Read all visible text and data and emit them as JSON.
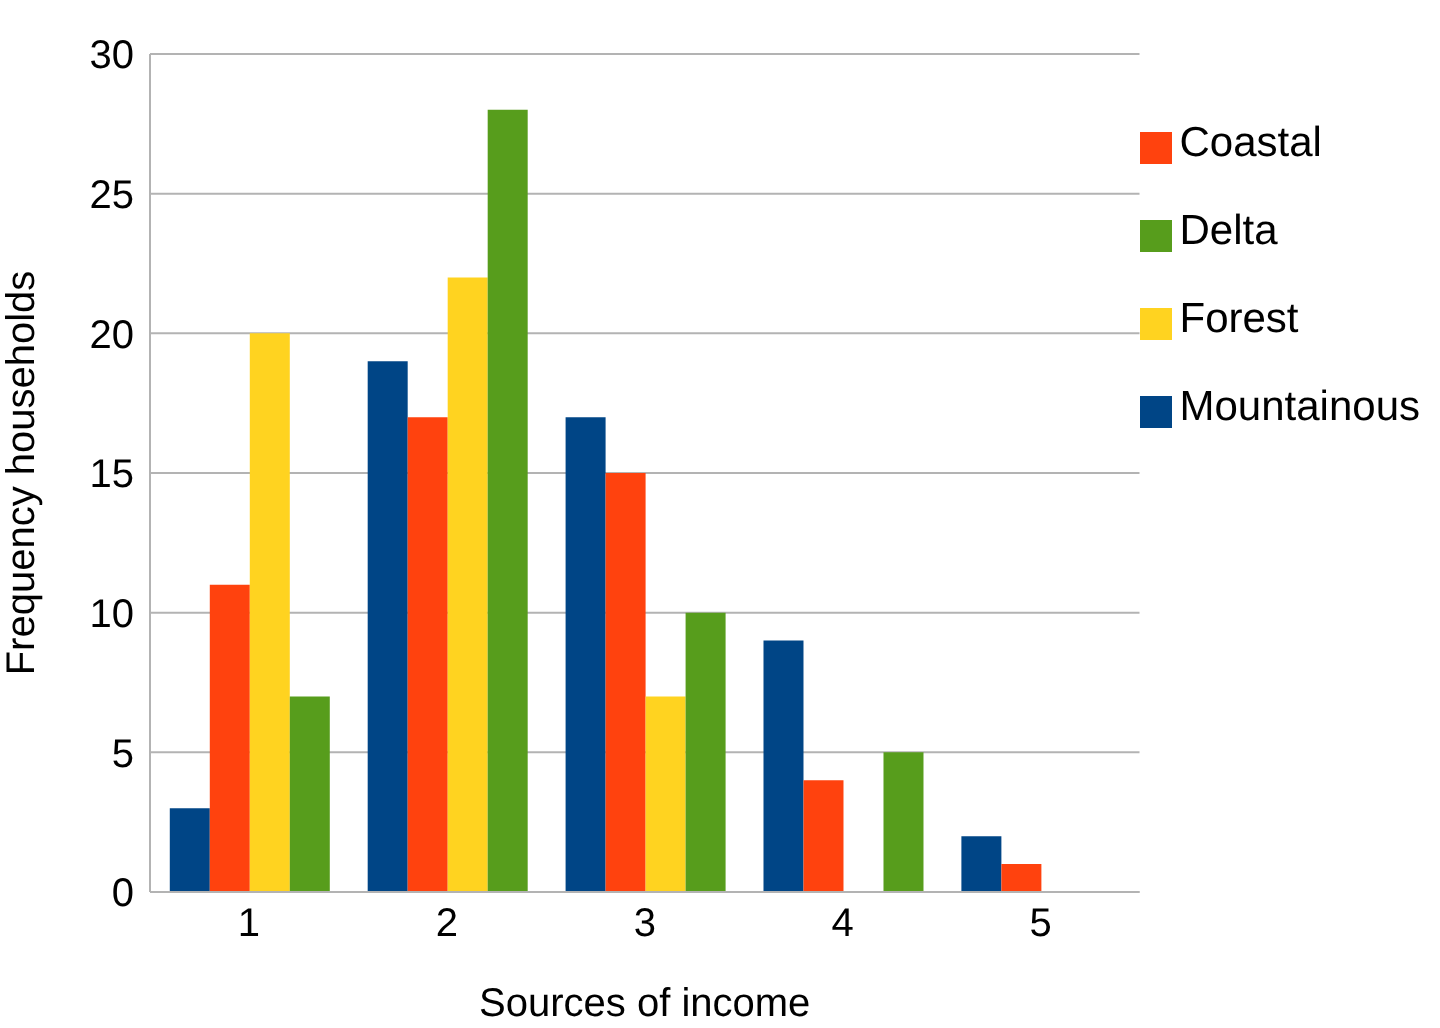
{
  "chart_data": {
    "type": "bar",
    "xlabel": "Sources of income",
    "ylabel": "Frequency households",
    "categories": [
      "1",
      "2",
      "3",
      "4",
      "5"
    ],
    "series": [
      {
        "name": "Mountainous",
        "color": "#004586",
        "values": [
          3,
          19,
          17,
          9,
          2
        ]
      },
      {
        "name": "Coastal",
        "color": "#ff420e",
        "values": [
          11,
          17,
          15,
          4,
          1
        ]
      },
      {
        "name": "Forest",
        "color": "#ffd320",
        "values": [
          20,
          22,
          7,
          null,
          null
        ]
      },
      {
        "name": "Delta",
        "color": "#579d1c",
        "values": [
          7,
          28,
          10,
          5,
          null
        ]
      }
    ],
    "ylim": [
      0,
      30
    ],
    "yticks": [
      0,
      5,
      10,
      15,
      20,
      25,
      30
    ],
    "grid": "y",
    "legend": "top right"
  }
}
